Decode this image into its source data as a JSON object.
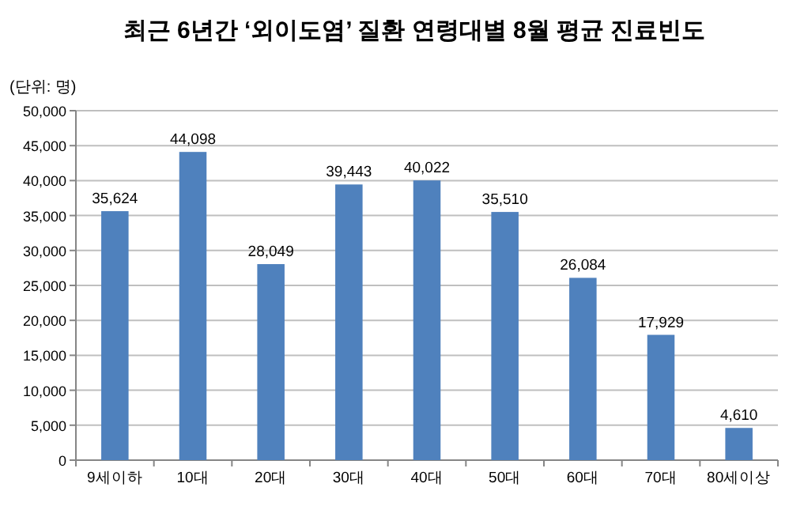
{
  "chart_data": {
    "type": "bar",
    "title": "최근 6년간 ‘외이도염’ 질환 연령대별 8월 평균 진료빈도",
    "annotations": [
      "(단위: 명)"
    ],
    "categories": [
      "9세이하",
      "10대",
      "20대",
      "30대",
      "40대",
      "50대",
      "60대",
      "70대",
      "80세이상"
    ],
    "values": [
      35624,
      44098,
      28049,
      39443,
      40022,
      35510,
      26084,
      17929,
      4610
    ],
    "value_labels": [
      "35,624",
      "44,098",
      "28,049",
      "39,443",
      "40,022",
      "35,510",
      "26,084",
      "17,929",
      "4,610"
    ],
    "color": "#4f81bd",
    "ylim": [
      0,
      50000
    ],
    "yticks": [
      0,
      {
        "value": 5000,
        "label": "5,000"
      },
      {
        "value": 10000,
        "label": "10,000"
      },
      {
        "value": 15000,
        "label": "15,000"
      },
      {
        "value": 20000,
        "label": "20,000"
      },
      {
        "value": 25000,
        "label": "25,000"
      },
      {
        "value": 30000,
        "label": "30,000"
      },
      {
        "value": 35000,
        "label": "35,000"
      },
      {
        "value": 40000,
        "label": "40,000"
      },
      {
        "value": 45000,
        "label": "45,000"
      },
      {
        "value": 50000,
        "label": "50,000"
      }
    ],
    "grid": "y"
  }
}
